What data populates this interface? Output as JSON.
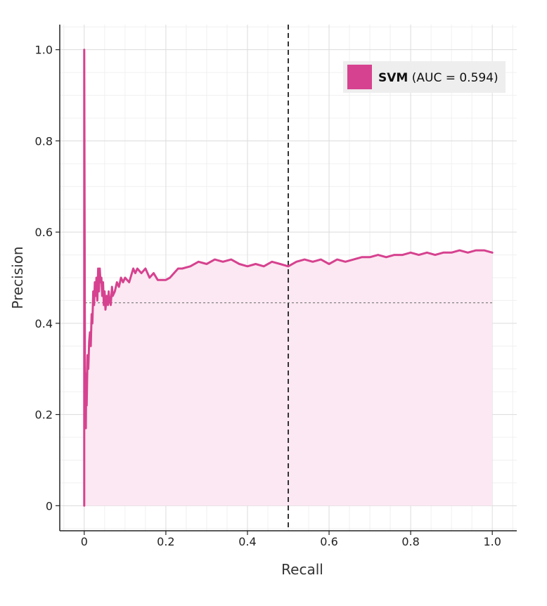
{
  "chart_data": {
    "type": "line",
    "title": "",
    "xlabel": "Recall",
    "ylabel": "Precision",
    "xlim": [
      -0.06,
      1.06
    ],
    "ylim": [
      -0.055,
      1.055
    ],
    "x_ticks": [
      0,
      0.2,
      0.4,
      0.6,
      0.8,
      1.0
    ],
    "x_tick_labels": [
      "0",
      "0.2",
      "0.4",
      "0.6",
      "0.8",
      "1.0"
    ],
    "y_ticks": [
      0,
      0.2,
      0.4,
      0.6,
      0.8,
      1.0
    ],
    "y_tick_labels": [
      "0",
      "0.2",
      "0.4",
      "0.6",
      "0.8",
      "1.0"
    ],
    "grid": true,
    "baseline_precision": 0.445,
    "threshold_recall": 0.5,
    "legend": {
      "placement": "top-right",
      "name": "SVM",
      "detail": "(AUC = 0.594)"
    },
    "colors": {
      "series": "#d6428f",
      "fill": "#fce8f2",
      "baseline": "#777777",
      "threshold": "#333333",
      "legend_bg": "#eeeeee"
    },
    "series": [
      {
        "name": "SVM",
        "x": [
          0,
          0,
          0.002,
          0.003,
          0.004,
          0.005,
          0.006,
          0.008,
          0.01,
          0.012,
          0.014,
          0.016,
          0.018,
          0.02,
          0.022,
          0.024,
          0.026,
          0.028,
          0.03,
          0.032,
          0.034,
          0.036,
          0.038,
          0.04,
          0.042,
          0.044,
          0.046,
          0.048,
          0.05,
          0.052,
          0.055,
          0.058,
          0.06,
          0.062,
          0.065,
          0.068,
          0.07,
          0.075,
          0.08,
          0.085,
          0.09,
          0.095,
          0.1,
          0.11,
          0.12,
          0.125,
          0.13,
          0.14,
          0.15,
          0.16,
          0.17,
          0.18,
          0.19,
          0.2,
          0.21,
          0.22,
          0.23,
          0.24,
          0.26,
          0.28,
          0.3,
          0.32,
          0.34,
          0.36,
          0.38,
          0.4,
          0.42,
          0.44,
          0.46,
          0.48,
          0.5,
          0.52,
          0.54,
          0.56,
          0.58,
          0.6,
          0.62,
          0.64,
          0.66,
          0.68,
          0.7,
          0.72,
          0.74,
          0.76,
          0.78,
          0.8,
          0.82,
          0.84,
          0.86,
          0.88,
          0.9,
          0.92,
          0.94,
          0.96,
          0.98,
          1.0
        ],
        "y": [
          0,
          1.0,
          0.2,
          0.28,
          0.17,
          0.29,
          0.22,
          0.33,
          0.3,
          0.36,
          0.38,
          0.35,
          0.42,
          0.4,
          0.47,
          0.44,
          0.49,
          0.46,
          0.5,
          0.45,
          0.52,
          0.47,
          0.52,
          0.49,
          0.5,
          0.46,
          0.49,
          0.44,
          0.47,
          0.43,
          0.46,
          0.44,
          0.47,
          0.45,
          0.44,
          0.48,
          0.46,
          0.47,
          0.49,
          0.48,
          0.5,
          0.49,
          0.5,
          0.49,
          0.52,
          0.51,
          0.52,
          0.51,
          0.52,
          0.5,
          0.51,
          0.495,
          0.495,
          0.495,
          0.5,
          0.51,
          0.52,
          0.52,
          0.525,
          0.535,
          0.53,
          0.54,
          0.535,
          0.54,
          0.53,
          0.525,
          0.53,
          0.525,
          0.535,
          0.53,
          0.525,
          0.535,
          0.54,
          0.535,
          0.54,
          0.53,
          0.54,
          0.535,
          0.54,
          0.545,
          0.545,
          0.55,
          0.545,
          0.55,
          0.55,
          0.555,
          0.55,
          0.555,
          0.55,
          0.555,
          0.555,
          0.56,
          0.555,
          0.56,
          0.56,
          0.555
        ]
      }
    ]
  }
}
